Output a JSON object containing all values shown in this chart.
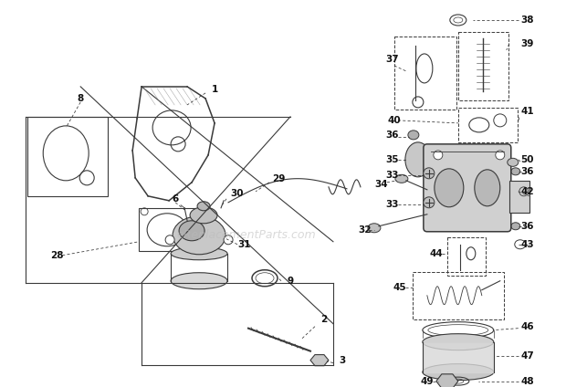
{
  "bg_color": "#ffffff",
  "watermark": "eReplacementParts.com",
  "watermark_color": "#bbbbbb",
  "watermark_alpha": 0.55,
  "fig_width": 6.2,
  "fig_height": 4.24,
  "dpi": 100
}
